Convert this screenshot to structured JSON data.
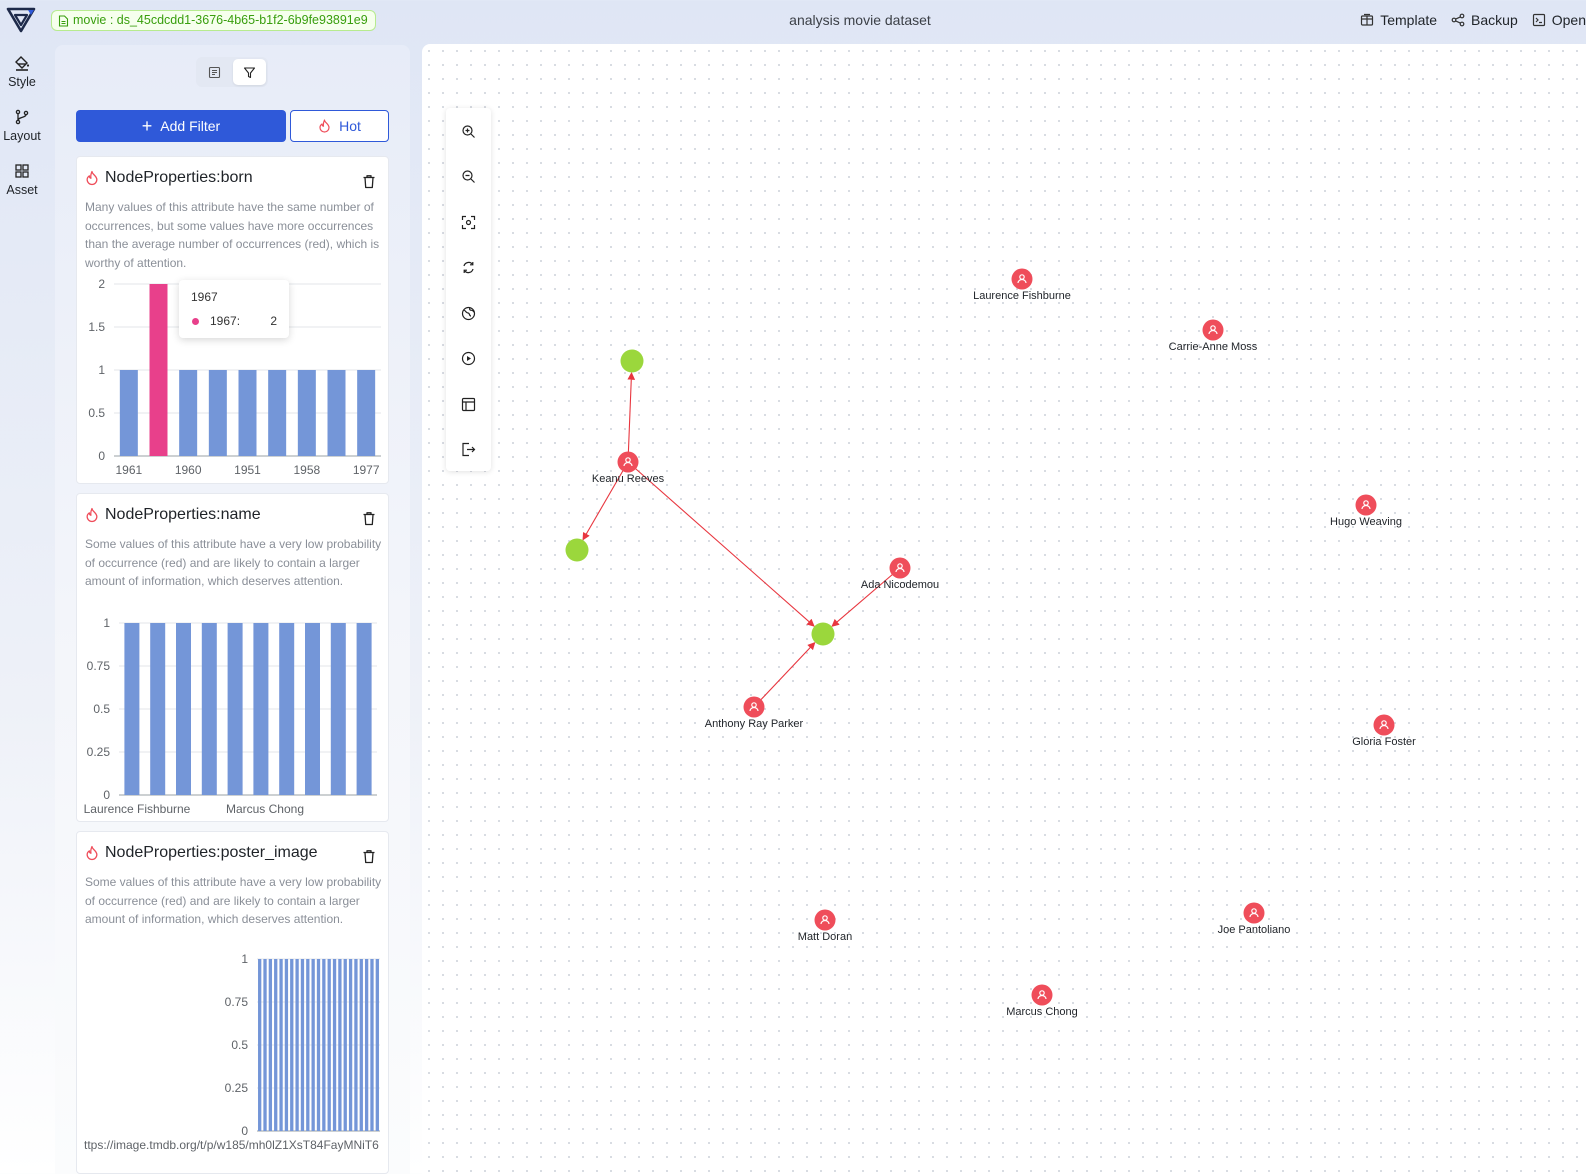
{
  "header": {
    "dataset_label": "movie : ds_45cdcdd1-3676-4b65-b1f2-6b9fe93891e9",
    "title": "analysis movie dataset",
    "actions": [
      {
        "label": "Template",
        "icon": "template-icon"
      },
      {
        "label": "Backup",
        "icon": "share-icon"
      },
      {
        "label": "Open",
        "icon": "terminal-icon"
      }
    ]
  },
  "rail": [
    {
      "label": "Style",
      "icon": "paint-bucket-icon"
    },
    {
      "label": "Layout",
      "icon": "branch-icon"
    },
    {
      "label": "Asset",
      "icon": "grid-icon"
    }
  ],
  "panel": {
    "tabs": [
      {
        "icon": "list-icon"
      },
      {
        "icon": "filter-icon",
        "active": true
      }
    ],
    "add_filter_label": "Add Filter",
    "hot_label": "Hot",
    "cards": [
      {
        "title": "NodeProperties:born",
        "description": "Many values of this attribute have the same number of occurrences, but some values have more occurrences than the average number of occurrences (red), which is worthy of attention.",
        "tooltip": {
          "title": "1967",
          "name": "1967:",
          "value": "2"
        }
      },
      {
        "title": "NodeProperties:name",
        "description": "Some values of this attribute have a very low probability of occurrence (red) and are likely to contain a larger amount of information, which deserves attention."
      },
      {
        "title": "NodeProperties:poster_image",
        "description": "Some values of this attribute have a very low probability of occurrence (red) and are likely to contain a larger amount of information, which deserves attention."
      }
    ]
  },
  "chart_data": [
    {
      "type": "bar",
      "title": "",
      "categories": [
        "1961",
        "1967",
        "1960",
        "",
        "1951",
        "",
        "1958",
        "",
        "1977"
      ],
      "x_tick_labels": [
        "1961",
        "1960",
        "1951",
        "1958",
        "1977"
      ],
      "values": [
        1,
        2,
        1,
        1,
        1,
        1,
        1,
        1,
        1
      ],
      "highlight_index": 1,
      "y_ticks": [
        "0",
        "0.5",
        "1",
        "1.5",
        "2"
      ],
      "ylim": [
        0,
        2
      ],
      "grid": true,
      "colors": {
        "bar": "#7496d8",
        "highlight": "#e8408b"
      }
    },
    {
      "type": "bar",
      "title": "",
      "x_tick_labels": [
        "Laurence Fishburne",
        "Marcus Chong"
      ],
      "values": [
        1,
        1,
        1,
        1,
        1,
        1,
        1,
        1,
        1,
        1
      ],
      "y_ticks": [
        "0",
        "0.25",
        "0.5",
        "0.75",
        "1"
      ],
      "ylim": [
        0,
        1
      ],
      "grid": true,
      "colors": {
        "bar": "#7496d8"
      }
    },
    {
      "type": "bar",
      "title": "",
      "x_tick_labels": [
        "ttps://image.tmdb.org/t/p/w185/mh0lZ1XsT84FayMNiT6"
      ],
      "values": [
        1,
        1,
        1,
        1,
        1,
        1,
        1,
        1,
        1,
        1,
        1,
        1,
        1,
        1,
        1,
        1,
        1,
        1,
        1,
        1,
        1,
        1,
        1
      ],
      "y_ticks": [
        "0",
        "0.25",
        "0.5",
        "0.75",
        "1"
      ],
      "ylim": [
        0,
        1
      ],
      "grid": true,
      "colors": {
        "bar": "#7496d8"
      }
    }
  ],
  "canvas": {
    "tools": [
      "zoom-in-icon",
      "zoom-out-icon",
      "fit-view-icon",
      "refresh-layout-icon",
      "globe-icon",
      "play-icon",
      "layout-panel-icon",
      "export-icon"
    ],
    "colors": {
      "person_node": "#ef4d5a",
      "movie_node": "#9bd73c",
      "edge": "#e8363f"
    },
    "person_nodes": [
      "Laurence Fishburne",
      "Carrie-Anne Moss",
      "Keanu Reeves",
      "Hugo Weaving",
      "Ada Nicodemou",
      "Anthony Ray Parker",
      "Gloria Foster",
      "Matt Doran",
      "Joe Pantoliano",
      "Marcus Chong"
    ],
    "edges": [
      [
        "Keanu Reeves",
        "movie-1"
      ],
      [
        "Keanu Reeves",
        "movie-2"
      ],
      [
        "Keanu Reeves",
        "movie-3"
      ],
      [
        "Ada Nicodemou",
        "movie-3"
      ],
      [
        "Anthony Ray Parker",
        "movie-3"
      ]
    ]
  }
}
